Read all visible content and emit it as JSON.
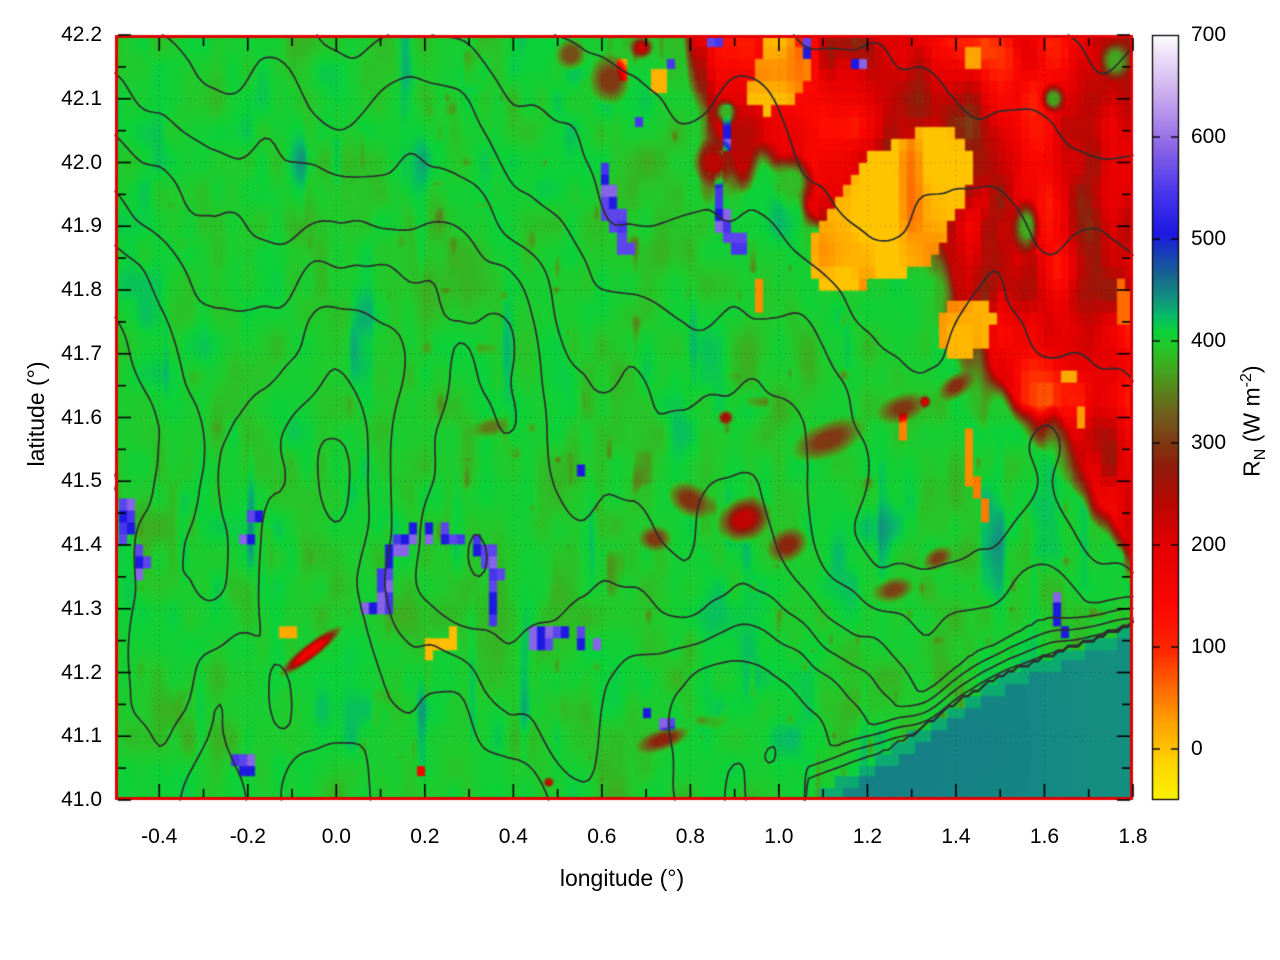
{
  "chart_data": {
    "type": "heatmap",
    "title": "",
    "xlabel": "longitude (°)",
    "ylabel": "latitude (°)",
    "xlim": [
      -0.5,
      1.8
    ],
    "ylim": [
      41.0,
      42.2
    ],
    "x_major_ticks": [
      -0.4,
      -0.2,
      0.0,
      0.2,
      0.4,
      0.6,
      0.8,
      1.0,
      1.2,
      1.4,
      1.6,
      1.8
    ],
    "x_major_labels": [
      "-0.4",
      "-0.2",
      "0.0",
      "0.2",
      "0.4",
      "0.6",
      "0.8",
      "1.0",
      "1.2",
      "1.4",
      "1.6",
      "1.8"
    ],
    "x_minor_step": 0.1,
    "y_major_ticks": [
      41.0,
      41.1,
      41.2,
      41.3,
      41.4,
      41.5,
      41.6,
      41.7,
      41.8,
      41.9,
      42.0,
      42.1,
      42.2
    ],
    "y_major_labels": [
      "41.0",
      "41.1",
      "41.2",
      "41.3",
      "41.4",
      "41.5",
      "41.6",
      "41.7",
      "41.8",
      "41.9",
      "42.0",
      "42.1",
      "42.2"
    ],
    "y_minor_step": 0.05,
    "grid": {
      "x_step": 0.2,
      "y_step": 0.1,
      "style": "dotted"
    },
    "border_color": "#e10000",
    "colorbar": {
      "label_parts": {
        "r": "R",
        "sub": "N",
        "mid": " (W m",
        "sup": "-2",
        "end": ")"
      },
      "tick_labels": [
        "0",
        "100",
        "200",
        "300",
        "400",
        "500",
        "600",
        "700"
      ],
      "tick_values": [
        0,
        100,
        200,
        300,
        400,
        500,
        600,
        700
      ],
      "range": [
        -50,
        700
      ],
      "palette": [
        [
          -50,
          "#fcf400"
        ],
        [
          -15,
          "#ffd700"
        ],
        [
          25,
          "#ffa400"
        ],
        [
          60,
          "#ff6a00"
        ],
        [
          95,
          "#ff2a00"
        ],
        [
          140,
          "#fb0800"
        ],
        [
          200,
          "#e40000"
        ],
        [
          240,
          "#bb0702"
        ],
        [
          275,
          "#931b0b"
        ],
        [
          305,
          "#7c3f14"
        ],
        [
          330,
          "#70611d"
        ],
        [
          355,
          "#56891c"
        ],
        [
          378,
          "#3bb021"
        ],
        [
          395,
          "#22ca2c"
        ],
        [
          410,
          "#0cd23a"
        ],
        [
          425,
          "#07bb68"
        ],
        [
          443,
          "#149080"
        ],
        [
          463,
          "#176b8e"
        ],
        [
          485,
          "#1941b6"
        ],
        [
          505,
          "#1d18e2"
        ],
        [
          548,
          "#4b38ee"
        ],
        [
          592,
          "#8e68e6"
        ],
        [
          640,
          "#c9aaee"
        ],
        [
          676,
          "#e9daf8"
        ],
        [
          700,
          "#ffffff"
        ]
      ]
    },
    "field": {
      "base_value": 399,
      "sea": {
        "value": 448,
        "coast": [
          [
            1.06,
            41.0
          ],
          [
            1.18,
            41.045
          ],
          [
            1.3,
            41.1
          ],
          [
            1.42,
            41.16
          ],
          [
            1.52,
            41.2
          ],
          [
            1.65,
            41.235
          ],
          [
            1.8,
            41.275
          ]
        ]
      },
      "ne_region": {
        "value": 195,
        "edge": [
          [
            0.72,
            42.2
          ],
          [
            1.8,
            41.48
          ]
        ]
      },
      "spots": [
        [
          -0.475,
          41.44,
          0.018,
          0.028,
          0,
          508,
          "b"
        ],
        [
          -0.445,
          41.37,
          0.015,
          0.018,
          0,
          508,
          "b"
        ],
        [
          -0.175,
          41.445,
          0.014,
          0.012,
          0,
          508,
          "b"
        ],
        [
          -0.195,
          41.41,
          0.016,
          0.014,
          0,
          508,
          "b"
        ],
        [
          -0.2,
          41.05,
          0.02,
          0.018,
          0,
          508,
          "b"
        ],
        [
          -0.225,
          41.065,
          0.01,
          0.01,
          0,
          508,
          "b"
        ],
        [
          0.55,
          41.515,
          0.011,
          0.011,
          0,
          508,
          "b"
        ],
        [
          0.145,
          41.405,
          0.013,
          0.02,
          0,
          508,
          "b"
        ],
        [
          0.175,
          41.42,
          0.013,
          0.013,
          0,
          508,
          "b"
        ],
        [
          0.21,
          41.42,
          0.015,
          0.012,
          0,
          508,
          "b"
        ],
        [
          0.245,
          41.415,
          0.014,
          0.012,
          0,
          508,
          "b"
        ],
        [
          0.28,
          41.41,
          0.014,
          0.012,
          0,
          508,
          "b"
        ],
        [
          0.315,
          41.4,
          0.014,
          0.013,
          0,
          508,
          "b"
        ],
        [
          0.345,
          41.385,
          0.012,
          0.015,
          0,
          508,
          "b"
        ],
        [
          0.36,
          41.355,
          0.011,
          0.017,
          0,
          508,
          "b"
        ],
        [
          0.357,
          41.32,
          0.011,
          0.017,
          0,
          508,
          "b"
        ],
        [
          0.35,
          41.29,
          0.011,
          0.015,
          0,
          508,
          "b"
        ],
        [
          0.118,
          41.378,
          0.012,
          0.02,
          0,
          508,
          "b"
        ],
        [
          0.105,
          41.345,
          0.013,
          0.022,
          0,
          508,
          "b"
        ],
        [
          0.112,
          41.31,
          0.015,
          0.02,
          0,
          508,
          "b"
        ],
        [
          0.08,
          41.3,
          0.02,
          0.014,
          0,
          508,
          "b"
        ],
        [
          0.46,
          41.255,
          0.028,
          0.013,
          0,
          508,
          "b"
        ],
        [
          0.515,
          41.262,
          0.015,
          0.012,
          0,
          508,
          "b"
        ],
        [
          0.555,
          41.25,
          0.015,
          0.012,
          0,
          508,
          "b"
        ],
        [
          0.585,
          41.24,
          0.01,
          0.01,
          0,
          508,
          "b"
        ],
        [
          0.62,
          41.935,
          0.012,
          0.03,
          0,
          508,
          "b"
        ],
        [
          0.64,
          41.9,
          0.011,
          0.02,
          0,
          508,
          "b"
        ],
        [
          0.605,
          41.98,
          0.012,
          0.02,
          0,
          508,
          "b"
        ],
        [
          0.655,
          41.865,
          0.009,
          0.012,
          0,
          508,
          "b"
        ],
        [
          0.862,
          41.95,
          0.013,
          0.05,
          0,
          508,
          "b"
        ],
        [
          0.878,
          41.9,
          0.01,
          0.02,
          0,
          508,
          "b"
        ],
        [
          0.845,
          42.0,
          0.01,
          0.015,
          0,
          508,
          "b"
        ],
        [
          0.882,
          42.055,
          0.012,
          0.03,
          0,
          508,
          "b"
        ],
        [
          0.68,
          42.065,
          0.012,
          0.012,
          0,
          508,
          "b"
        ],
        [
          0.856,
          42.19,
          0.012,
          0.015,
          0,
          508,
          "b"
        ],
        [
          1.06,
          42.175,
          0.012,
          0.015,
          0,
          508,
          "b"
        ],
        [
          1.18,
          42.155,
          0.01,
          0.012,
          0,
          508,
          "b"
        ],
        [
          0.75,
          42.16,
          0.009,
          0.01,
          0,
          508,
          "b"
        ],
        [
          0.91,
          41.868,
          0.018,
          0.014,
          0,
          575,
          "b"
        ],
        [
          1.63,
          41.295,
          0.012,
          0.02,
          0,
          508,
          "b"
        ],
        [
          1.645,
          41.27,
          0.008,
          0.009,
          0,
          508,
          "b"
        ],
        [
          0.745,
          41.115,
          0.01,
          0.01,
          0,
          508,
          "b"
        ],
        [
          0.7,
          41.135,
          0.008,
          0.008,
          0,
          508,
          "b"
        ],
        [
          0.215,
          41.245,
          0.014,
          0.02,
          0,
          8,
          "y"
        ],
        [
          0.257,
          41.247,
          0.014,
          0.022,
          0,
          5,
          "y"
        ],
        [
          -0.108,
          41.262,
          0.02,
          0.008,
          -25,
          20,
          "y"
        ],
        [
          0.955,
          41.79,
          0.01,
          0.022,
          0,
          40,
          "y"
        ],
        [
          1.25,
          41.92,
          0.23,
          0.09,
          -27,
          0,
          "y"
        ],
        [
          1.42,
          41.74,
          0.07,
          0.045,
          -25,
          10,
          "y"
        ],
        [
          1.0,
          42.13,
          0.07,
          0.045,
          -20,
          5,
          "y"
        ],
        [
          1.0,
          42.18,
          0.045,
          0.02,
          0,
          10,
          "y"
        ],
        [
          0.73,
          42.13,
          0.025,
          0.02,
          0,
          15,
          "y"
        ],
        [
          0.645,
          42.145,
          0.008,
          0.012,
          0,
          20,
          "y"
        ],
        [
          1.655,
          41.66,
          0.016,
          0.012,
          0,
          20,
          "y"
        ],
        [
          1.68,
          41.6,
          0.011,
          0.024,
          0,
          30,
          "y"
        ],
        [
          1.285,
          41.595,
          0.009,
          0.028,
          0,
          45,
          "y"
        ],
        [
          1.425,
          41.53,
          0.009,
          0.045,
          8,
          40,
          "y"
        ],
        [
          1.455,
          41.47,
          0.009,
          0.04,
          -8,
          50,
          "y"
        ],
        [
          1.78,
          41.78,
          0.015,
          0.04,
          0,
          60,
          "y"
        ],
        [
          1.435,
          42.17,
          0.025,
          0.018,
          0,
          25,
          "y"
        ],
        [
          -0.055,
          41.235,
          0.085,
          0.014,
          -28,
          170,
          "s"
        ],
        [
          0.92,
          41.44,
          0.065,
          0.038,
          -10,
          235,
          "s"
        ],
        [
          0.8,
          41.47,
          0.055,
          0.028,
          15,
          295,
          "s"
        ],
        [
          1.02,
          41.4,
          0.05,
          0.028,
          -12,
          285,
          "s"
        ],
        [
          0.72,
          41.41,
          0.04,
          0.022,
          0,
          300,
          "s"
        ],
        [
          1.11,
          41.565,
          0.085,
          0.03,
          -14,
          300,
          "s"
        ],
        [
          1.28,
          41.615,
          0.06,
          0.025,
          -10,
          298,
          "s"
        ],
        [
          1.4,
          41.65,
          0.045,
          0.022,
          -20,
          290,
          "s"
        ],
        [
          1.33,
          41.625,
          0.014,
          0.011,
          0,
          185,
          "s"
        ],
        [
          1.26,
          41.33,
          0.05,
          0.02,
          -8,
          308,
          "s"
        ],
        [
          1.36,
          41.38,
          0.04,
          0.02,
          -15,
          305,
          "s"
        ],
        [
          0.74,
          41.095,
          0.065,
          0.018,
          -12,
          282,
          "s"
        ],
        [
          0.185,
          41.045,
          0.008,
          0.008,
          0,
          165,
          "y"
        ],
        [
          0.48,
          41.028,
          0.012,
          0.008,
          0,
          215,
          "s"
        ],
        [
          0.35,
          41.585,
          0.05,
          0.018,
          -8,
          345,
          "s"
        ],
        [
          1.79,
          41.45,
          0.02,
          0.13,
          0,
          215,
          "s"
        ],
        [
          0.88,
          41.6,
          0.018,
          0.012,
          0,
          250,
          "s"
        ],
        [
          0.85,
          42.0,
          0.05,
          0.04,
          0,
          240,
          "s"
        ],
        [
          0.62,
          42.13,
          0.05,
          0.04,
          0,
          300,
          "s"
        ],
        [
          0.53,
          42.17,
          0.035,
          0.025,
          0,
          315,
          "s"
        ],
        [
          0.69,
          42.18,
          0.03,
          0.02,
          0,
          220,
          "s"
        ],
        [
          1.03,
          41.97,
          0.055,
          0.045,
          0,
          385,
          "s"
        ],
        [
          0.88,
          42.08,
          0.03,
          0.022,
          0,
          380,
          "s"
        ],
        [
          1.56,
          41.9,
          0.035,
          0.05,
          0,
          375,
          "s"
        ],
        [
          1.62,
          42.1,
          0.03,
          0.025,
          0,
          370,
          "s"
        ],
        [
          1.76,
          42.16,
          0.035,
          0.03,
          0,
          370,
          "s"
        ]
      ]
    },
    "contours": {
      "levels": [
        0.12,
        0.3,
        0.48,
        0.66,
        0.86,
        1.08,
        1.34,
        1.64,
        2.0,
        2.4,
        2.85,
        3.35
      ],
      "color": "#2e2e2e"
    }
  }
}
